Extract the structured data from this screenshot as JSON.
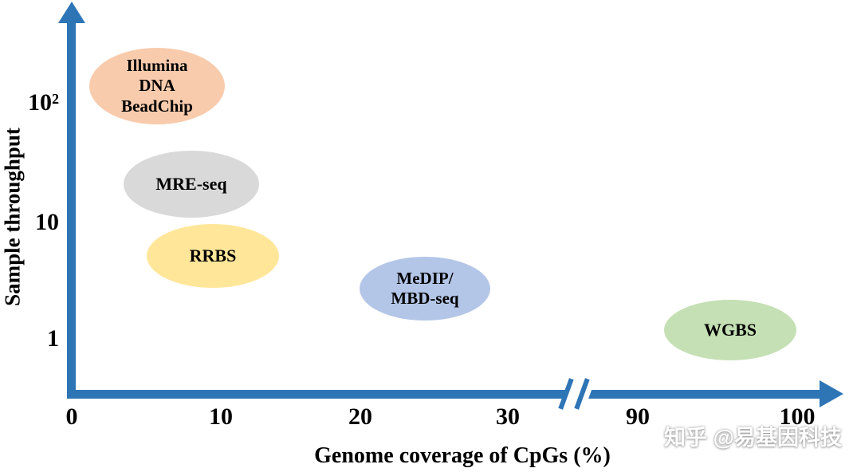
{
  "chart_data": {
    "type": "scatter",
    "title": "",
    "xlabel": "Genome coverage of CpGs (%)",
    "ylabel": "Sample throughput",
    "x_tick_labels": [
      "0",
      "10",
      "20",
      "30",
      "90",
      "100"
    ],
    "x_tick_values": [
      0,
      10,
      20,
      30,
      90,
      100
    ],
    "x_axis_break_between": [
      30,
      90
    ],
    "y_tick_labels": [
      "10²",
      "10",
      "1"
    ],
    "y_tick_values": [
      100,
      10,
      1
    ],
    "y_scale": "log",
    "xlim": [
      0,
      105
    ],
    "ylim": [
      0.3,
      500
    ],
    "grid": false,
    "legend": false,
    "series": [
      {
        "name": "Illumina DNA BeadChip",
        "label": "Illumina\nDNA\nBeadChip",
        "x": 6,
        "y": 150,
        "color": "#F8CBAD"
      },
      {
        "name": "MRE-seq",
        "label": "MRE-seq",
        "x": 8,
        "y": 20,
        "color": "#D9D9D9"
      },
      {
        "name": "RRBS",
        "label": "RRBS",
        "x": 9.5,
        "y": 5,
        "color": "#FFE699"
      },
      {
        "name": "MeDIP/MBD-seq",
        "label": "MeDIP/\nMBD-seq",
        "x": 24,
        "y": 2.8,
        "color": "#B4C6E7"
      },
      {
        "name": "WGBS",
        "label": "WGBS",
        "x": 95,
        "y": 1.3,
        "color": "#C5E0B4"
      }
    ]
  },
  "colors": {
    "axis": "#2E75B6",
    "text": "#000000",
    "watermark": "#FFFFFF"
  },
  "watermark": "知乎 @易基因科技"
}
